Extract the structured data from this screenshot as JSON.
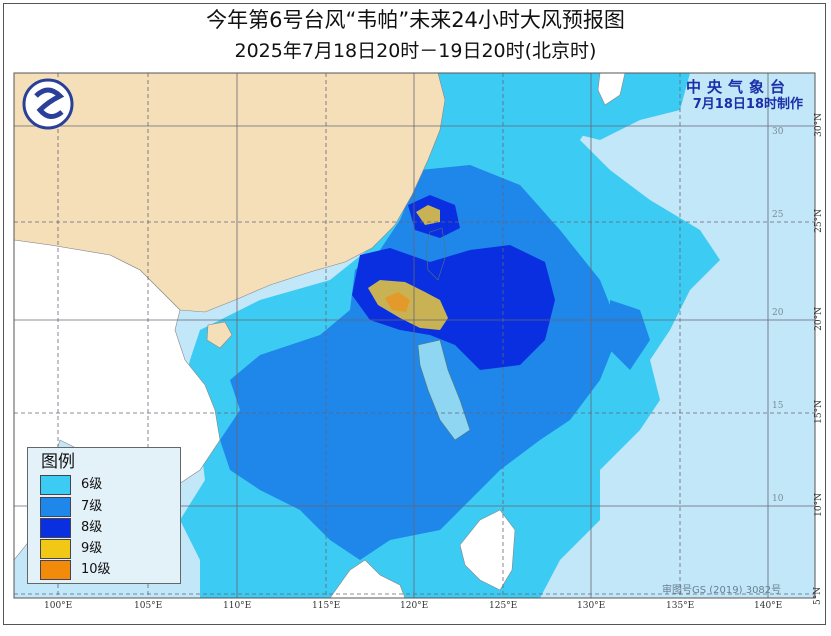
{
  "header": {
    "title": "今年第6号台风“韦帕”未来24小时大风预报图",
    "subtitle": "2025年7月18日20时－19日20时(北京时)"
  },
  "agency": {
    "name": "中央气象台",
    "issued": "7月18日18时制作"
  },
  "legend": {
    "title": "图例",
    "items": [
      {
        "label": "6级",
        "color": "#3ccbf2"
      },
      {
        "label": "7级",
        "color": "#1f86ea"
      },
      {
        "label": "8级",
        "color": "#0a2fe0"
      },
      {
        "label": "9级",
        "color": "#f2c817"
      },
      {
        "label": "10级",
        "color": "#f28a0a"
      }
    ]
  },
  "axes": {
    "longitude_labels": [
      "100°E",
      "105°E",
      "110°E",
      "115°E",
      "120°E",
      "125°E",
      "130°E",
      "135°E",
      "140°E"
    ],
    "latitude_labels": [
      "30°N",
      "25°N",
      "20°N",
      "15°N",
      "10°N",
      "5°N"
    ],
    "inner_latitude_labels": [
      "30",
      "25",
      "20",
      "15",
      "10"
    ]
  },
  "map_colors": {
    "china_land": "#f4dfb9",
    "other_land": "#ffffff",
    "sea": "#c2e7f8",
    "zone_9_map": "#c9b253"
  },
  "watermark": "审图号GS (2019) 3082号"
}
